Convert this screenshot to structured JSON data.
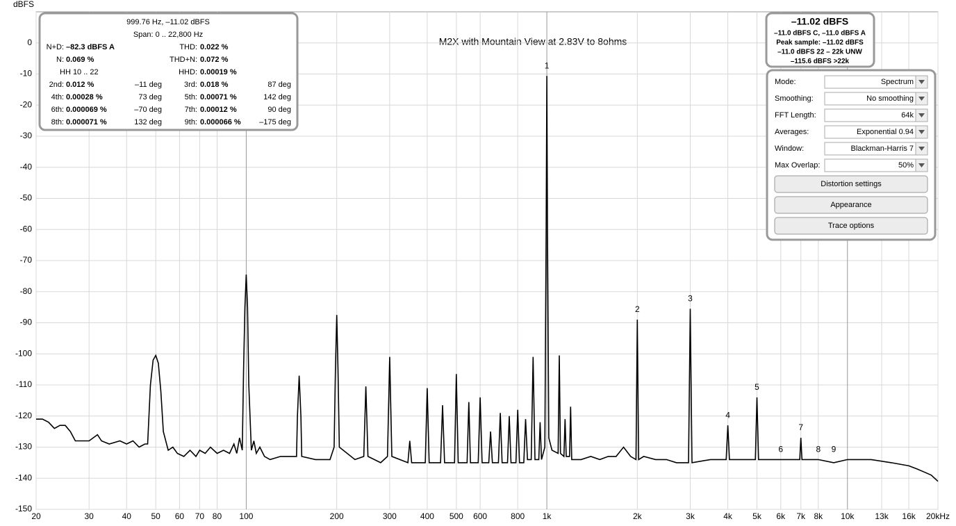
{
  "chart_data": {
    "type": "line",
    "title": "M2X with Mountain View at 2.83V to 8ohms",
    "y_label": "dBFS",
    "log_x": true,
    "grid": true,
    "xlim": [
      20,
      20000
    ],
    "ylim": [
      -150,
      10
    ],
    "xticks": [
      20,
      30,
      40,
      50,
      60,
      70,
      80,
      100,
      200,
      300,
      400,
      500,
      600,
      800,
      {
        "value": 1000,
        "label": "1k"
      },
      {
        "value": 2000,
        "label": "2k"
      },
      {
        "value": 3000,
        "label": "3k"
      },
      {
        "value": 4000,
        "label": "4k"
      },
      {
        "value": 5000,
        "label": "5k"
      },
      {
        "value": 6000,
        "label": "6k"
      },
      {
        "value": 7000,
        "label": "7k"
      },
      {
        "value": 8000,
        "label": "8k"
      },
      {
        "value": 10000,
        "label": "10k"
      },
      {
        "value": 13000,
        "label": "13k",
        "color": "#aaaaaa"
      },
      {
        "value": 16000,
        "label": "16k",
        "color": "#aaaaaa"
      },
      {
        "value": 20000,
        "label": "20kHz"
      }
    ],
    "yticks": [
      0,
      -10,
      -20,
      -30,
      -40,
      -50,
      -60,
      -70,
      -80,
      -90,
      -100,
      -110,
      -120,
      -130,
      -140,
      -150
    ],
    "x": [
      20,
      21,
      22,
      23,
      24,
      25,
      26,
      27,
      30,
      32,
      33,
      35,
      38,
      40,
      42,
      44,
      46,
      47,
      48,
      49,
      50,
      51,
      52,
      53,
      55,
      57,
      59,
      62,
      65,
      68,
      70,
      73,
      76,
      80,
      84,
      88,
      91,
      93,
      95,
      97,
      98,
      99,
      100,
      101,
      102,
      104,
      106,
      108,
      111,
      115,
      120,
      130,
      140,
      147,
      148,
      150,
      152,
      153,
      170,
      190,
      196,
      198,
      200,
      202,
      204,
      230,
      246,
      250,
      254,
      280,
      295,
      300,
      305,
      345,
      350,
      355,
      394,
      400,
      406,
      443,
      450,
      457,
      493,
      500,
      507,
      543,
      550,
      557,
      591,
      600,
      609,
      641,
      650,
      659,
      690,
      700,
      710,
      740,
      750,
      760,
      789,
      800,
      811,
      838,
      850,
      862,
      887,
      900,
      913,
      940,
      950,
      960,
      985,
      995,
      1000,
      1005,
      1015,
      1040,
      1090,
      1100,
      1110,
      1140,
      1150,
      1160,
      1190,
      1200,
      1210,
      1300,
      1400,
      1500,
      1600,
      1700,
      1800,
      1900,
      1980,
      2000,
      2020,
      2100,
      2300,
      2500,
      2700,
      2960,
      3000,
      3040,
      3500,
      3950,
      4000,
      4050,
      4500,
      4940,
      5000,
      5060,
      6000,
      6940,
      7000,
      7060,
      8000,
      9000,
      10000,
      12000,
      14000,
      16000,
      17000,
      18000,
      19000,
      20000
    ],
    "series": [
      {
        "name": "Spectrum",
        "color": "#000000",
        "values": [
          -121,
          -121,
          -122,
          -124,
          -123,
          -123,
          -125,
          -128,
          -128,
          -126,
          -128,
          -129,
          -128,
          -129,
          -128,
          -130,
          -129,
          -129,
          -110,
          -102,
          -100.5,
          -103,
          -112,
          -125,
          -131,
          -130,
          -132,
          -133,
          -131,
          -133,
          -131,
          -132,
          -130,
          -132,
          -131,
          -132,
          -129,
          -132,
          -127,
          -131,
          -105,
          -85,
          -74.5,
          -85,
          -110,
          -131,
          -128,
          -132,
          -130,
          -133,
          -134,
          -133,
          -133,
          -133,
          -120,
          -107,
          -120,
          -133,
          -134,
          -134,
          -130,
          -105,
          -87.5,
          -105,
          -130,
          -134,
          -133,
          -110.5,
          -133,
          -135,
          -133,
          -101,
          -133,
          -135,
          -128,
          -135,
          -135,
          -111,
          -135,
          -135,
          -116.5,
          -135,
          -135,
          -106.5,
          -135,
          -135,
          -115.5,
          -135,
          -135,
          -114,
          -135,
          -135,
          -125,
          -135,
          -135,
          -119,
          -135,
          -135,
          -120,
          -135,
          -135,
          -118,
          -135,
          -135,
          -121,
          -134,
          -134,
          -101,
          -134,
          -134,
          -122,
          -134,
          -130,
          -60,
          -10.6,
          -60,
          -127,
          -131,
          -132,
          -100.5,
          -132,
          -133,
          -121,
          -133,
          -133,
          -117,
          -134,
          -134,
          -133,
          -134,
          -133,
          -133,
          -130,
          -133,
          -134,
          -89,
          -134,
          -133,
          -134,
          -134,
          -135,
          -135,
          -85.5,
          -135,
          -134,
          -134,
          -123,
          -134,
          -134,
          -134,
          -114,
          -134,
          -134,
          -134,
          -127,
          -134,
          -134,
          -135,
          -134,
          -134,
          -135,
          -136,
          -137,
          -138,
          -139,
          -141
        ]
      }
    ],
    "annotations": [
      {
        "label": "1",
        "x": 1000,
        "y": -10.6
      },
      {
        "label": "2",
        "x": 2000,
        "y": -89
      },
      {
        "label": "3",
        "x": 3000,
        "y": -85.5
      },
      {
        "label": "4",
        "x": 4000,
        "y": -123
      },
      {
        "label": "5",
        "x": 5000,
        "y": -114
      },
      {
        "label": "6",
        "x": 6000,
        "y": -134
      },
      {
        "label": "7",
        "x": 7000,
        "y": -127
      },
      {
        "label": "8",
        "x": 8000,
        "y": -134
      },
      {
        "label": "9",
        "x": 9000,
        "y": -134
      }
    ]
  },
  "info_panel": {
    "header": [
      "999.76 Hz, –11.02 dBFS",
      "Span: 0 .. 22,800 Hz"
    ],
    "rows": [
      {
        "l1": "N+D:",
        "v1": "–82.3 dBFS A",
        "l2": "THD:",
        "v2": "0.022 %"
      },
      {
        "l1": "N:",
        "v1": "0.069 %",
        "l2": "THD+N:",
        "v2": "0.072 %"
      },
      {
        "l1": "HH 10 .. 22",
        "l2": "HHD:",
        "v2": "0.00019 %"
      },
      {
        "l1": "2nd:",
        "v1": "0.012 %",
        "p1": "–11 deg",
        "l2": "3rd:",
        "v2": "0.018 %",
        "p2": "87 deg"
      },
      {
        "l1": "4th:",
        "v1": "0.00028 %",
        "p1": "73 deg",
        "l2": "5th:",
        "v2": "0.00071 %",
        "p2": "142 deg"
      },
      {
        "l1": "6th:",
        "v1": "0.000069 %",
        "p1": "–70 deg",
        "l2": "7th:",
        "v2": "0.00012 %",
        "p2": "90 deg"
      },
      {
        "l1": "8th:",
        "v1": "0.000071 %",
        "p1": "132 deg",
        "l2": "9th:",
        "v2": "0.000066 %",
        "p2": "–175 deg"
      }
    ]
  },
  "level_panel": {
    "main": "–11.02 dBFS",
    "lines": [
      "–11.0 dBFS C, –11.0 dBFS A",
      "Peak sample: –11.02 dBFS",
      "–11.0 dBFS 22 – 22k UNW",
      "–115.6 dBFS >22k"
    ]
  },
  "controls": {
    "fields": [
      {
        "label": "Mode:",
        "value": "Spectrum"
      },
      {
        "label": "Smoothing:",
        "value": "No  smoothing"
      },
      {
        "label": "FFT Length:",
        "value": "64k"
      },
      {
        "label": "Averages:",
        "value": "Exponential 0.94"
      },
      {
        "label": "Window:",
        "value": "Blackman-Harris 7"
      },
      {
        "label": "Max Overlap:",
        "value": "50%"
      }
    ],
    "buttons": [
      "Distortion settings",
      "Appearance",
      "Trace options"
    ]
  }
}
